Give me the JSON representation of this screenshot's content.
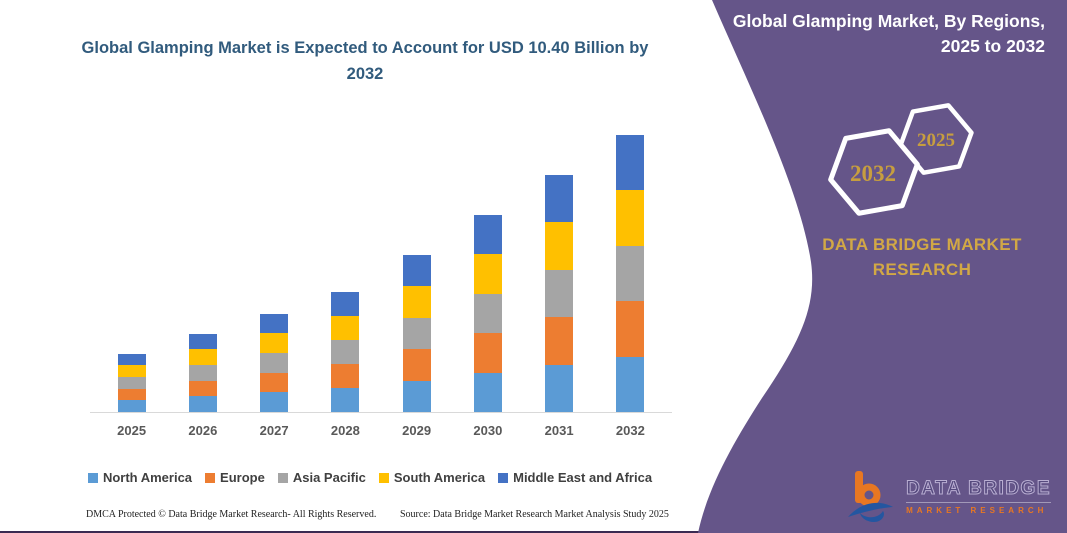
{
  "chart_title": "Global Glamping Market is Expected to Account for USD 10.40 Billion by 2032",
  "chart_data": {
    "type": "bar",
    "stacked": true,
    "unit": "USD Billion",
    "x": [
      "2025",
      "2026",
      "2027",
      "2028",
      "2029",
      "2030",
      "2031",
      "2032"
    ],
    "series": [
      {
        "name": "North America",
        "color": "#5B9BD5",
        "values": [
          0.44,
          0.59,
          0.74,
          0.9,
          1.18,
          1.48,
          1.78,
          2.08
        ]
      },
      {
        "name": "Europe",
        "color": "#ED7D31",
        "values": [
          0.44,
          0.59,
          0.74,
          0.9,
          1.18,
          1.48,
          1.78,
          2.08
        ]
      },
      {
        "name": "Asia Pacific",
        "color": "#A5A5A5",
        "values": [
          0.44,
          0.59,
          0.74,
          0.9,
          1.18,
          1.48,
          1.78,
          2.08
        ]
      },
      {
        "name": "South America",
        "color": "#FFC000",
        "values": [
          0.44,
          0.59,
          0.74,
          0.9,
          1.18,
          1.48,
          1.78,
          2.08
        ]
      },
      {
        "name": "Middle East and Africa",
        "color": "#4472C4",
        "values": [
          0.44,
          0.59,
          0.74,
          0.9,
          1.18,
          1.48,
          1.78,
          2.08
        ]
      }
    ],
    "totals": [
      2.2,
      2.95,
      3.7,
      4.5,
      5.9,
      7.4,
      8.9,
      10.4
    ],
    "ylim": [
      0,
      11
    ],
    "gridlines": false,
    "legend_position": "bottom"
  },
  "side_panel": {
    "title": "Global Glamping Market, By Regions, 2025 to 2032",
    "hexagon_large_label": "2032",
    "hexagon_small_label": "2025",
    "brand_heading": "DATA BRIDGE MARKET RESEARCH",
    "logo_primary": "DATA BRIDGE",
    "logo_secondary": "MARKET RESEARCH"
  },
  "footer": {
    "dmca": "DMCA Protected © Data Bridge Market Research-  All Rights Reserved.",
    "source": "Source: Data Bridge Market Research  Market Analysis Study 2025"
  },
  "colors": {
    "panel_purple": "#655589",
    "title_text": "#315B7D",
    "gold_heading": "#D2A845",
    "gold_year": "#C79E3F",
    "axis_label": "#595959",
    "legend_label": "#404040",
    "axis_line": "#D9D9D9",
    "logo_orange": "#E87722",
    "logo_blue": "#2456A0",
    "bottom_rule": "#3A2A52"
  }
}
